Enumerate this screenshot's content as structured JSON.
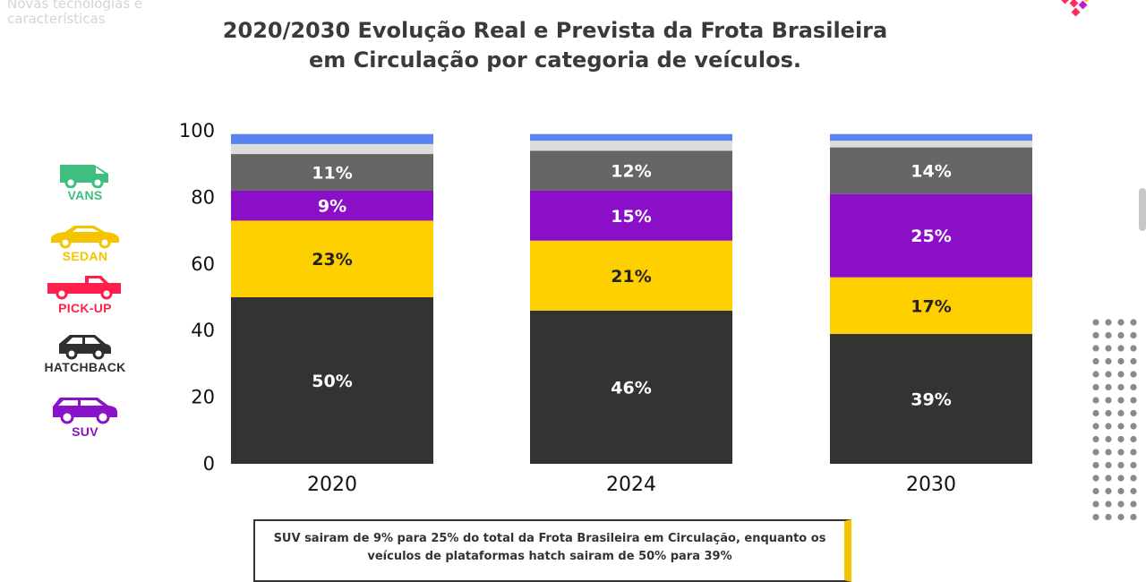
{
  "header": {
    "faded_text": "Novas tecnologias e características",
    "title_line1": "2020/2030 Evolução Real e Prevista da Frota Brasileira",
    "title_line2": "em Circulação por categoria de veículos."
  },
  "legend": [
    {
      "label": "VANS",
      "color": "#3fbf7f",
      "icon": "van-icon"
    },
    {
      "label": "SEDAN",
      "color": "#f5c400",
      "icon": "sedan-icon"
    },
    {
      "label": "PICK-UP",
      "color": "#ff1f4b",
      "icon": "pickup-icon"
    },
    {
      "label": "HATCHBACK",
      "color": "#2f2f2f",
      "icon": "hatchback-icon"
    },
    {
      "label": "SUV",
      "color": "#8a12c8",
      "icon": "suv-icon"
    }
  ],
  "chart_data": {
    "type": "bar",
    "stacked": true,
    "title": "2020/2030 Evolução Real e Prevista da Frota Brasileira em Circulação por categoria de veículos.",
    "categories": [
      "2020",
      "2024",
      "2030"
    ],
    "ylim": [
      0,
      100
    ],
    "yticks": [
      "0",
      "20",
      "40",
      "60",
      "80",
      "100"
    ],
    "grid": false,
    "series": [
      {
        "name": "HATCHBACK",
        "color": "#333333",
        "values": [
          50,
          46,
          39
        ],
        "labels": [
          "50%",
          "46%",
          "39%"
        ]
      },
      {
        "name": "SEDAN",
        "color": "#ffd000",
        "values": [
          23,
          21,
          17
        ],
        "labels": [
          "23%",
          "21%",
          "17%"
        ]
      },
      {
        "name": "SUV",
        "color": "#8c0fc8",
        "values": [
          9,
          15,
          25
        ],
        "labels": [
          "9%",
          "15%",
          "25%"
        ]
      },
      {
        "name": "",
        "color": "#666666",
        "values": [
          11,
          12,
          14
        ],
        "labels": [
          "11%",
          "12%",
          "14%"
        ]
      },
      {
        "name": "",
        "color": "#dcdcdc",
        "values": [
          3,
          3,
          2
        ],
        "labels": [
          "",
          "",
          ""
        ]
      },
      {
        "name": "",
        "color": "#5b83f0",
        "values": [
          3,
          2,
          2
        ],
        "labels": [
          "",
          "",
          ""
        ]
      }
    ]
  },
  "note": {
    "line1": "SUV sairam de 9% para 25% do total da Frota Brasileira em Circulação, enquanto os",
    "line2": "veículos de plataformas hatch sairam de 50% para 39%"
  }
}
